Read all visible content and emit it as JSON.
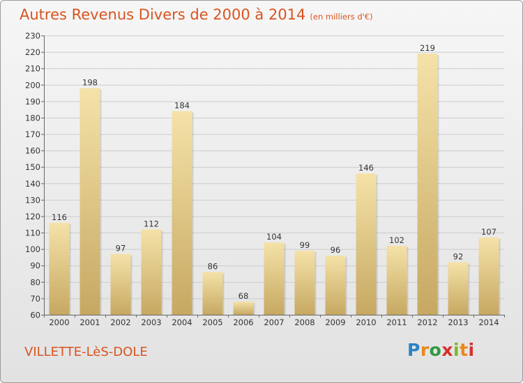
{
  "title": "Autres Revenus Divers de 2000 à 2014",
  "title_unit": "(en milliers d'€)",
  "commune": "VILLETTE-LèS-DOLE",
  "logo_text": "Proxiti",
  "colors": {
    "title": "#d9541f",
    "bar_light": "#f5e2a8",
    "bar_dark": "#c6a862",
    "grid": "#cccccc",
    "logo": [
      "#2c83c6",
      "#e8891c",
      "#2e9a3d",
      "#d62f2f",
      "#7ab82a"
    ]
  },
  "chart_data": {
    "type": "bar",
    "title": "Autres Revenus Divers de 2000 à 2014",
    "xlabel": "",
    "ylabel": "",
    "categories": [
      "2000",
      "2001",
      "2002",
      "2003",
      "2004",
      "2005",
      "2006",
      "2007",
      "2008",
      "2009",
      "2010",
      "2011",
      "2012",
      "2013",
      "2014"
    ],
    "values": [
      116,
      198,
      97,
      112,
      184,
      86,
      68,
      104,
      99,
      96,
      146,
      102,
      219,
      92,
      107
    ],
    "ylim": [
      60,
      230
    ],
    "yticks": [
      60,
      70,
      80,
      90,
      100,
      110,
      120,
      130,
      140,
      150,
      160,
      170,
      180,
      190,
      200,
      210,
      220,
      230
    ],
    "grid": true,
    "data_labels": true
  }
}
